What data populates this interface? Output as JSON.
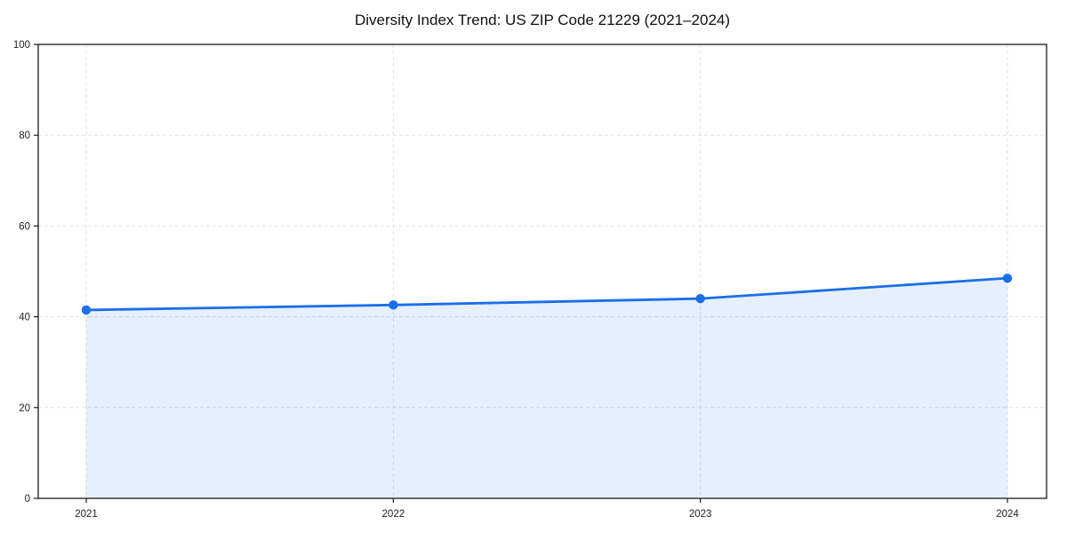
{
  "title": "Diversity Index Trend: US ZIP Code 21229 (2021–2024)",
  "chart_data": {
    "type": "area",
    "title": "Diversity Index Trend: US ZIP Code 21229 (2021–2024)",
    "categories": [
      "2021",
      "2022",
      "2023",
      "2024"
    ],
    "series": [
      {
        "name": "Diversity Index",
        "values": [
          41.5,
          42.6,
          44.0,
          48.5
        ]
      }
    ],
    "xlabel": "",
    "ylabel": "",
    "ylim": [
      0,
      100
    ],
    "yticks": [
      0,
      20,
      40,
      60,
      80,
      100
    ],
    "grid": "dashed",
    "legend": "none",
    "colors": {
      "line": "#1b6fe8",
      "marker": "#1b6fe8",
      "area_fill": "rgba(27,111,232,0.11)",
      "grid_line": "#e2e2e2",
      "axis_border": "#1a1a1a",
      "tick_text": "#222222",
      "title_text": "#111111",
      "background": "#ffffff"
    }
  }
}
